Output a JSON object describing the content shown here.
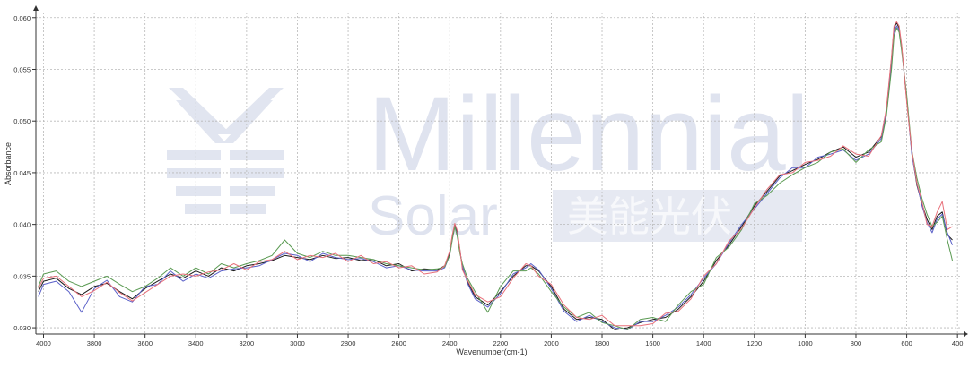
{
  "colors": {
    "background": "#ffffff",
    "grid": "#b9b9b9",
    "axis": "#333333",
    "watermark": "#e1e5f0"
  },
  "watermark": {
    "line1": "Millennial",
    "line2": "Solar",
    "cn": "美能光伏"
  },
  "chart_data": {
    "type": "line",
    "title": "",
    "xlabel": "Wavenumber(cm-1)",
    "ylabel": "Absorbance",
    "xlim": [
      4030,
      390
    ],
    "ylim": [
      0.0294,
      0.0605
    ],
    "x_reversed": true,
    "grid": true,
    "legend": "none",
    "x_ticks": [
      4000,
      3800,
      3600,
      3400,
      3200,
      3000,
      2800,
      2600,
      2400,
      2200,
      2000,
      1800,
      1600,
      1400,
      1200,
      1000,
      800,
      600,
      400
    ],
    "y_ticks": [
      0.03,
      0.035,
      0.04,
      0.045,
      0.05,
      0.055,
      0.06
    ],
    "y_tick_labels": [
      "0.030",
      "0.035",
      "0.040",
      "0.045",
      "0.050",
      "0.055",
      "0.060"
    ],
    "x": [
      4020,
      4000,
      3950,
      3900,
      3850,
      3800,
      3750,
      3700,
      3650,
      3600,
      3550,
      3500,
      3450,
      3400,
      3350,
      3300,
      3250,
      3200,
      3150,
      3100,
      3050,
      3000,
      2950,
      2900,
      2850,
      2800,
      2750,
      2700,
      2650,
      2600,
      2550,
      2500,
      2450,
      2420,
      2400,
      2390,
      2380,
      2370,
      2360,
      2350,
      2330,
      2300,
      2250,
      2200,
      2150,
      2100,
      2080,
      2050,
      2000,
      1950,
      1900,
      1850,
      1800,
      1750,
      1700,
      1650,
      1600,
      1550,
      1500,
      1450,
      1400,
      1350,
      1300,
      1250,
      1200,
      1150,
      1100,
      1050,
      1000,
      950,
      900,
      850,
      800,
      750,
      700,
      680,
      660,
      650,
      640,
      630,
      620,
      600,
      580,
      560,
      540,
      520,
      500,
      480,
      460,
      440,
      420
    ],
    "series": [
      {
        "color": "#1a1a1a",
        "values": [
          0.0335,
          0.0345,
          0.0348,
          0.0338,
          0.0332,
          0.034,
          0.0343,
          0.0335,
          0.0328,
          0.0338,
          0.0345,
          0.0352,
          0.0348,
          0.0355,
          0.035,
          0.0358,
          0.0355,
          0.036,
          0.0362,
          0.0365,
          0.037,
          0.0368,
          0.0366,
          0.037,
          0.0367,
          0.0368,
          0.0365,
          0.0366,
          0.036,
          0.0362,
          0.0355,
          0.0357,
          0.0356,
          0.036,
          0.0372,
          0.0388,
          0.04,
          0.0392,
          0.0375,
          0.0358,
          0.0345,
          0.033,
          0.0322,
          0.0335,
          0.035,
          0.036,
          0.036,
          0.0355,
          0.034,
          0.0318,
          0.0308,
          0.031,
          0.0308,
          0.0298,
          0.03,
          0.0305,
          0.0308,
          0.031,
          0.0318,
          0.033,
          0.0345,
          0.0365,
          0.038,
          0.0398,
          0.0418,
          0.0432,
          0.0447,
          0.0452,
          0.0458,
          0.0463,
          0.047,
          0.0475,
          0.0465,
          0.047,
          0.0485,
          0.051,
          0.056,
          0.059,
          0.0595,
          0.059,
          0.0572,
          0.052,
          0.047,
          0.0438,
          0.042,
          0.0405,
          0.0395,
          0.0408,
          0.0412,
          0.039,
          0.0385
        ]
      },
      {
        "color": "#5a60c8",
        "values": [
          0.033,
          0.0342,
          0.0345,
          0.0335,
          0.0315,
          0.0338,
          0.0346,
          0.033,
          0.0325,
          0.034,
          0.0342,
          0.0355,
          0.0345,
          0.0352,
          0.0348,
          0.0355,
          0.0357,
          0.0358,
          0.036,
          0.0366,
          0.0372,
          0.037,
          0.0364,
          0.0372,
          0.0368,
          0.0366,
          0.0367,
          0.0364,
          0.0358,
          0.036,
          0.0356,
          0.0355,
          0.0355,
          0.0358,
          0.037,
          0.0386,
          0.0398,
          0.039,
          0.0374,
          0.036,
          0.0343,
          0.0328,
          0.032,
          0.0333,
          0.0352,
          0.0358,
          0.0362,
          0.0356,
          0.0338,
          0.0316,
          0.0306,
          0.0312,
          0.0306,
          0.03,
          0.0298,
          0.0306,
          0.0306,
          0.0312,
          0.032,
          0.0332,
          0.0348,
          0.0362,
          0.0382,
          0.04,
          0.0415,
          0.043,
          0.0445,
          0.0455,
          0.0455,
          0.0465,
          0.0468,
          0.0472,
          0.0462,
          0.0468,
          0.0483,
          0.0508,
          0.0556,
          0.0586,
          0.0592,
          0.0588,
          0.057,
          0.0522,
          0.0468,
          0.044,
          0.0418,
          0.0402,
          0.0392,
          0.0405,
          0.041,
          0.0392,
          0.038
        ]
      },
      {
        "color": "#5a9a52",
        "values": [
          0.034,
          0.0352,
          0.0355,
          0.0345,
          0.034,
          0.0345,
          0.035,
          0.0342,
          0.0335,
          0.034,
          0.0348,
          0.0358,
          0.035,
          0.0358,
          0.0352,
          0.0362,
          0.0358,
          0.0362,
          0.0365,
          0.037,
          0.0385,
          0.0372,
          0.0368,
          0.0374,
          0.037,
          0.037,
          0.0368,
          0.0366,
          0.0362,
          0.036,
          0.0358,
          0.0356,
          0.0357,
          0.0359,
          0.037,
          0.0385,
          0.0398,
          0.0388,
          0.0372,
          0.0362,
          0.0348,
          0.0335,
          0.0315,
          0.034,
          0.0355,
          0.0355,
          0.0358,
          0.0352,
          0.0335,
          0.032,
          0.031,
          0.0315,
          0.0305,
          0.0302,
          0.0298,
          0.0308,
          0.031,
          0.0306,
          0.0322,
          0.0335,
          0.0342,
          0.0368,
          0.0378,
          0.0395,
          0.042,
          0.0428,
          0.044,
          0.0448,
          0.0455,
          0.046,
          0.047,
          0.0473,
          0.046,
          0.0472,
          0.048,
          0.0505,
          0.055,
          0.0582,
          0.059,
          0.0586,
          0.0568,
          0.0525,
          0.0472,
          0.0445,
          0.0425,
          0.041,
          0.0398,
          0.0402,
          0.0408,
          0.0385,
          0.0365
        ]
      },
      {
        "color": "#e8707a",
        "values": [
          0.0338,
          0.0348,
          0.035,
          0.034,
          0.033,
          0.0336,
          0.0344,
          0.0334,
          0.0326,
          0.0334,
          0.0342,
          0.035,
          0.0352,
          0.035,
          0.0354,
          0.0356,
          0.0362,
          0.0356,
          0.0364,
          0.0366,
          0.0374,
          0.0366,
          0.037,
          0.0368,
          0.0372,
          0.0364,
          0.037,
          0.0362,
          0.0364,
          0.0358,
          0.036,
          0.0352,
          0.0354,
          0.036,
          0.0374,
          0.039,
          0.0401,
          0.0394,
          0.0376,
          0.0356,
          0.0346,
          0.0332,
          0.0325,
          0.033,
          0.0348,
          0.0362,
          0.036,
          0.035,
          0.0342,
          0.0322,
          0.031,
          0.0308,
          0.0312,
          0.0302,
          0.0302,
          0.0302,
          0.0304,
          0.0314,
          0.0316,
          0.0328,
          0.035,
          0.0362,
          0.0384,
          0.0396,
          0.0416,
          0.0434,
          0.0448,
          0.045,
          0.046,
          0.0462,
          0.0466,
          0.0476,
          0.0468,
          0.0466,
          0.0486,
          0.0512,
          0.0562,
          0.0592,
          0.0596,
          0.0592,
          0.0574,
          0.0518,
          0.0472,
          0.044,
          0.0422,
          0.04,
          0.0398,
          0.0412,
          0.0422,
          0.0395,
          0.0398
        ]
      }
    ]
  }
}
